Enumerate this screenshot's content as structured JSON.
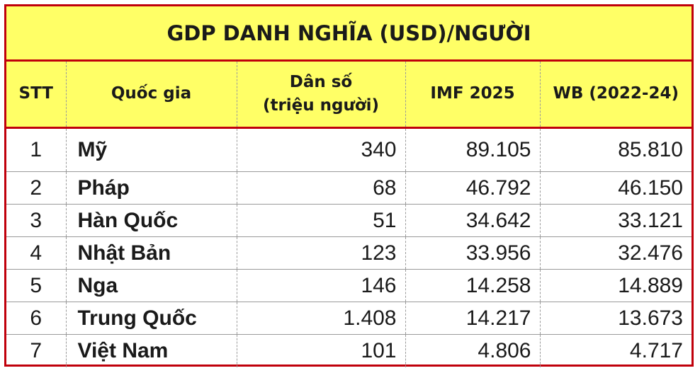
{
  "title": "GDP DANH NGHĨA (USD)/NGƯỜI",
  "headers": {
    "stt": "STT",
    "country": "Quốc gia",
    "population_line1": "Dân số",
    "population_line2": "(triệu người)",
    "imf": "IMF 2025",
    "wb": "WB (2022-24)"
  },
  "rows": [
    {
      "stt": "1",
      "country": "Mỹ",
      "population": "340",
      "imf": "89.105",
      "wb": "85.810"
    },
    {
      "stt": "2",
      "country": "Pháp",
      "population": "68",
      "imf": "46.792",
      "wb": "46.150"
    },
    {
      "stt": "3",
      "country": "Hàn Quốc",
      "population": "51",
      "imf": "34.642",
      "wb": "33.121"
    },
    {
      "stt": "4",
      "country": "Nhật Bản",
      "population": "123",
      "imf": "33.956",
      "wb": "32.476"
    },
    {
      "stt": "5",
      "country": "Nga",
      "population": "146",
      "imf": "14.258",
      "wb": "14.889"
    },
    {
      "stt": "6",
      "country": "Trung Quốc",
      "population": "1.408",
      "imf": "14.217",
      "wb": "13.673"
    },
    {
      "stt": "7",
      "country": "Việt Nam",
      "population": "101",
      "imf": "4.806",
      "wb": "4.717"
    }
  ],
  "colors": {
    "header_bg": "#ffff66",
    "border": "#c0000b"
  }
}
